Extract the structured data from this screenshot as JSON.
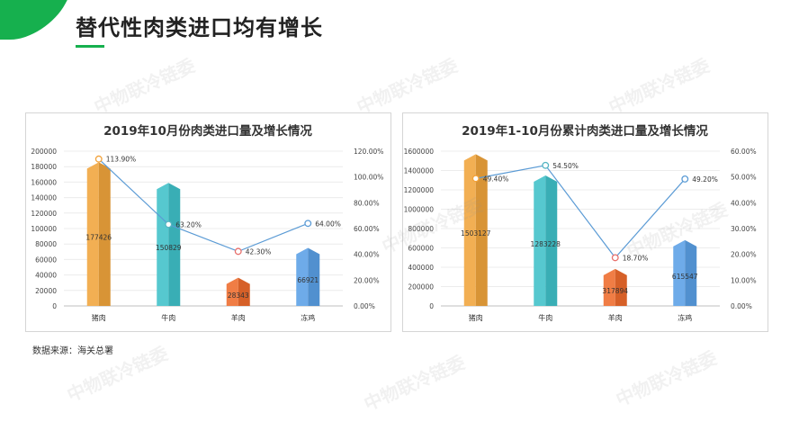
{
  "slide": {
    "title": "替代性肉类进口均有增长",
    "source": "数据来源：海关总署",
    "watermark": "中物联冷链委",
    "accent_color": "#16b04e"
  },
  "chart_data": [
    {
      "type": "bar",
      "title": "2019年10月份肉类进口量及增长情况",
      "categories": [
        "猪肉",
        "牛肉",
        "羊肉",
        "冻鸡"
      ],
      "series": [
        {
          "values": [
            177426,
            150829,
            28343,
            66921
          ],
          "colors": [
            "#f0a43c",
            "#3fc1c9",
            "#ee6b2c",
            "#5aa0e6"
          ]
        },
        {
          "values": [
            113.9,
            63.2,
            42.3,
            64.0
          ],
          "axis": "right",
          "line_color": "#5b9bd5",
          "marker_colors": [
            "#f2a23a",
            "#55b5c2",
            "#e8706c",
            "#5b9bd5"
          ]
        }
      ],
      "ylim": [
        0,
        200000
      ],
      "y_ticks": [
        0,
        20000,
        40000,
        60000,
        80000,
        100000,
        120000,
        140000,
        160000,
        180000,
        200000
      ],
      "y2lim": [
        0,
        120
      ],
      "y2_ticks": [
        "0.00%",
        "20.00%",
        "40.00%",
        "60.00%",
        "80.00%",
        "100.00%",
        "120.00%"
      ],
      "bar_labels": [
        "177426",
        "150829",
        "28343",
        "66921"
      ],
      "line_labels": [
        "113.90%",
        "63.20%",
        "42.30%",
        "64.00%"
      ]
    },
    {
      "type": "bar",
      "title": "2019年1-10月份累计肉类进口量及增长情况",
      "categories": [
        "猪肉",
        "牛肉",
        "羊肉",
        "冻鸡"
      ],
      "series": [
        {
          "values": [
            1503127,
            1283228,
            317894,
            615547
          ],
          "colors": [
            "#f0a43c",
            "#3fc1c9",
            "#ee6b2c",
            "#5aa0e6"
          ]
        },
        {
          "values": [
            49.4,
            54.5,
            18.7,
            49.2
          ],
          "axis": "right",
          "line_color": "#5b9bd5",
          "marker_colors": [
            "#f2a23a",
            "#55b5c2",
            "#e8706c",
            "#5b9bd5"
          ]
        }
      ],
      "ylim": [
        0,
        1600000
      ],
      "y_ticks": [
        0,
        200000,
        400000,
        600000,
        800000,
        1000000,
        1200000,
        1400000,
        1600000
      ],
      "y2lim": [
        0,
        60
      ],
      "y2_ticks": [
        "0.00%",
        "10.00%",
        "20.00%",
        "30.00%",
        "40.00%",
        "50.00%",
        "60.00%"
      ],
      "bar_labels": [
        "1503127",
        "1283228",
        "317894",
        "615547"
      ],
      "line_labels": [
        "49.40%",
        "54.50%",
        "18.70%",
        "49.20%"
      ]
    }
  ]
}
